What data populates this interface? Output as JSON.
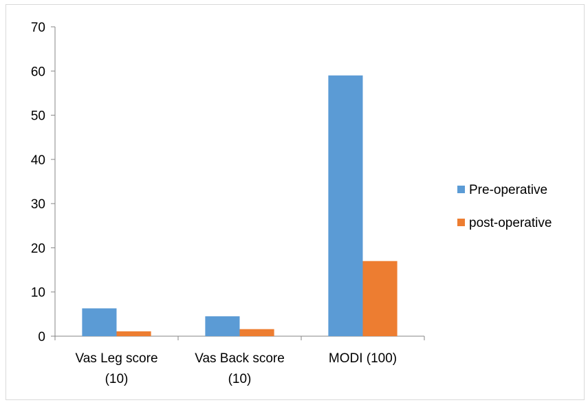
{
  "chart_data": {
    "type": "bar",
    "title": "",
    "xlabel": "",
    "ylabel": "",
    "categories": [
      [
        "Vas  Leg score",
        "(10)"
      ],
      [
        "Vas  Back score",
        "(10)"
      ],
      [
        "MODI (100)"
      ]
    ],
    "series": [
      {
        "name": "Pre-operative",
        "color": "#5b9bd5",
        "values": [
          6.3,
          4.5,
          59
        ]
      },
      {
        "name": "post-operative",
        "color": "#ed7d31",
        "values": [
          1.1,
          1.6,
          17
        ]
      }
    ],
    "ylim": [
      0,
      70
    ],
    "yticks": [
      0,
      10,
      20,
      30,
      40,
      50,
      60,
      70
    ],
    "grid": false,
    "legend_position": "right"
  }
}
